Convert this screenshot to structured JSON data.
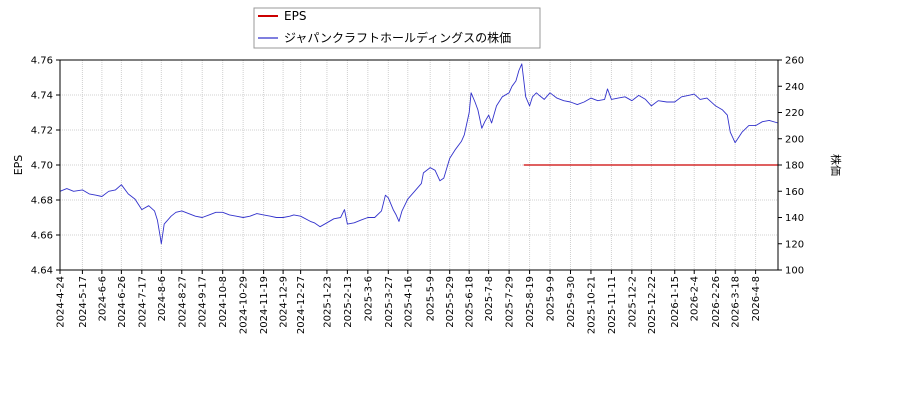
{
  "chart_data": {
    "type": "line",
    "legend": {
      "placement": "top-left",
      "entries": [
        {
          "label": "EPS",
          "color": "#cc0000"
        },
        {
          "label": "ジャパンクラフトホールディングスの株価",
          "color": "#3333cc"
        }
      ]
    },
    "grid": true,
    "xlabel": "",
    "ylabel_left": "EPS",
    "ylabel_right": "株価",
    "ylim_left": [
      4.64,
      4.76
    ],
    "ylim_right": [
      100,
      260
    ],
    "x_range": [
      "2024-04-24",
      "2026-05-01"
    ],
    "yticks_left": [
      "4.64",
      "4.66",
      "4.68",
      "4.70",
      "4.72",
      "4.74",
      "4.76"
    ],
    "yticks_right": [
      "100",
      "120",
      "140",
      "160",
      "180",
      "200",
      "220",
      "240",
      "260"
    ],
    "xticks": [
      "2024-4-24",
      "2024-5-17",
      "2024-6-6",
      "2024-6-26",
      "2024-7-17",
      "2024-8-6",
      "2024-8-27",
      "2024-9-17",
      "2024-10-8",
      "2024-10-29",
      "2024-11-19",
      "2024-12-9",
      "2024-12-27",
      "2025-1-23",
      "2025-2-13",
      "2025-3-6",
      "2025-3-27",
      "2025-4-16",
      "2025-5-9",
      "2025-5-29",
      "2025-6-18",
      "2025-7-8",
      "2025-7-29",
      "2025-8-19",
      "2025-9-9",
      "2025-9-30",
      "2025-10-21",
      "2025-11-11",
      "2025-12-2",
      "2025-12-22",
      "2026-1-15",
      "2026-2-4",
      "2026-2-26",
      "2026-3-18",
      "2026-4-8"
    ],
    "series": [
      {
        "name": "EPS",
        "axis": "left",
        "color": "#cc0000",
        "points": [
          [
            "2025-08-13",
            4.7
          ],
          [
            "2026-05-01",
            4.7
          ]
        ]
      },
      {
        "name": "ジャパンクラフトホールディングスの株価",
        "axis": "right",
        "color": "#3333cc",
        "points": [
          [
            "2024-04-24",
            160
          ],
          [
            "2024-05-01",
            162
          ],
          [
            "2024-05-08",
            160
          ],
          [
            "2024-05-17",
            161
          ],
          [
            "2024-05-24",
            158
          ],
          [
            "2024-05-31",
            157
          ],
          [
            "2024-06-06",
            156
          ],
          [
            "2024-06-13",
            160
          ],
          [
            "2024-06-20",
            161
          ],
          [
            "2024-06-26",
            165
          ],
          [
            "2024-07-03",
            158
          ],
          [
            "2024-07-10",
            154
          ],
          [
            "2024-07-17",
            146
          ],
          [
            "2024-07-24",
            149
          ],
          [
            "2024-07-30",
            145
          ],
          [
            "2024-08-02",
            138
          ],
          [
            "2024-08-05",
            125
          ],
          [
            "2024-08-06",
            120
          ],
          [
            "2024-08-09",
            135
          ],
          [
            "2024-08-16",
            141
          ],
          [
            "2024-08-21",
            144
          ],
          [
            "2024-08-27",
            145
          ],
          [
            "2024-09-03",
            143
          ],
          [
            "2024-09-10",
            141
          ],
          [
            "2024-09-17",
            140
          ],
          [
            "2024-09-24",
            142
          ],
          [
            "2024-10-01",
            144
          ],
          [
            "2024-10-08",
            144
          ],
          [
            "2024-10-15",
            142
          ],
          [
            "2024-10-22",
            141
          ],
          [
            "2024-10-29",
            140
          ],
          [
            "2024-11-05",
            141
          ],
          [
            "2024-11-12",
            143
          ],
          [
            "2024-11-19",
            142
          ],
          [
            "2024-11-26",
            141
          ],
          [
            "2024-12-02",
            140
          ],
          [
            "2024-12-09",
            140
          ],
          [
            "2024-12-16",
            141
          ],
          [
            "2024-12-20",
            142
          ],
          [
            "2024-12-27",
            141
          ],
          [
            "2025-01-06",
            137
          ],
          [
            "2025-01-10",
            136
          ],
          [
            "2025-01-16",
            133
          ],
          [
            "2025-01-23",
            136
          ],
          [
            "2025-01-30",
            139
          ],
          [
            "2025-02-06",
            140
          ],
          [
            "2025-02-10",
            146
          ],
          [
            "2025-02-13",
            135
          ],
          [
            "2025-02-20",
            136
          ],
          [
            "2025-02-27",
            138
          ],
          [
            "2025-03-06",
            140
          ],
          [
            "2025-03-13",
            140
          ],
          [
            "2025-03-20",
            145
          ],
          [
            "2025-03-24",
            157
          ],
          [
            "2025-03-27",
            155
          ],
          [
            "2025-04-01",
            146
          ],
          [
            "2025-04-04",
            142
          ],
          [
            "2025-04-07",
            137
          ],
          [
            "2025-04-10",
            145
          ],
          [
            "2025-04-16",
            154
          ],
          [
            "2025-04-23",
            160
          ],
          [
            "2025-04-30",
            166
          ],
          [
            "2025-05-02",
            174
          ],
          [
            "2025-05-09",
            178
          ],
          [
            "2025-05-14",
            176
          ],
          [
            "2025-05-19",
            168
          ],
          [
            "2025-05-23",
            170
          ],
          [
            "2025-05-29",
            185
          ],
          [
            "2025-06-04",
            192
          ],
          [
            "2025-06-10",
            198
          ],
          [
            "2025-06-13",
            203
          ],
          [
            "2025-06-18",
            220
          ],
          [
            "2025-06-20",
            235
          ],
          [
            "2025-06-24",
            228
          ],
          [
            "2025-06-27",
            222
          ],
          [
            "2025-07-01",
            208
          ],
          [
            "2025-07-04",
            213
          ],
          [
            "2025-07-08",
            218
          ],
          [
            "2025-07-11",
            212
          ],
          [
            "2025-07-16",
            225
          ],
          [
            "2025-07-22",
            232
          ],
          [
            "2025-07-29",
            235
          ],
          [
            "2025-08-01",
            240
          ],
          [
            "2025-08-05",
            244
          ],
          [
            "2025-08-08",
            252
          ],
          [
            "2025-08-11",
            257
          ],
          [
            "2025-08-13",
            245
          ],
          [
            "2025-08-15",
            232
          ],
          [
            "2025-08-19",
            225
          ],
          [
            "2025-08-22",
            232
          ],
          [
            "2025-08-26",
            235
          ],
          [
            "2025-08-29",
            233
          ],
          [
            "2025-09-03",
            230
          ],
          [
            "2025-09-09",
            235
          ],
          [
            "2025-09-16",
            231
          ],
          [
            "2025-09-23",
            229
          ],
          [
            "2025-09-30",
            228
          ],
          [
            "2025-10-07",
            226
          ],
          [
            "2025-10-14",
            228
          ],
          [
            "2025-10-21",
            231
          ],
          [
            "2025-10-28",
            229
          ],
          [
            "2025-11-04",
            230
          ],
          [
            "2025-11-07",
            238
          ],
          [
            "2025-11-11",
            230
          ],
          [
            "2025-11-18",
            231
          ],
          [
            "2025-11-25",
            232
          ],
          [
            "2025-12-02",
            229
          ],
          [
            "2025-12-09",
            233
          ],
          [
            "2025-12-16",
            230
          ],
          [
            "2025-12-22",
            225
          ],
          [
            "2025-12-29",
            229
          ],
          [
            "2026-01-07",
            228
          ],
          [
            "2026-01-15",
            228
          ],
          [
            "2026-01-22",
            232
          ],
          [
            "2026-01-29",
            233
          ],
          [
            "2026-02-04",
            234
          ],
          [
            "2026-02-10",
            230
          ],
          [
            "2026-02-17",
            231
          ],
          [
            "2026-02-26",
            225
          ],
          [
            "2026-03-05",
            222
          ],
          [
            "2026-03-10",
            218
          ],
          [
            "2026-03-13",
            205
          ],
          [
            "2026-03-18",
            197
          ],
          [
            "2026-03-25",
            205
          ],
          [
            "2026-04-01",
            210
          ],
          [
            "2026-04-08",
            210
          ],
          [
            "2026-04-15",
            213
          ],
          [
            "2026-04-22",
            214
          ],
          [
            "2026-05-01",
            212
          ]
        ]
      }
    ]
  }
}
